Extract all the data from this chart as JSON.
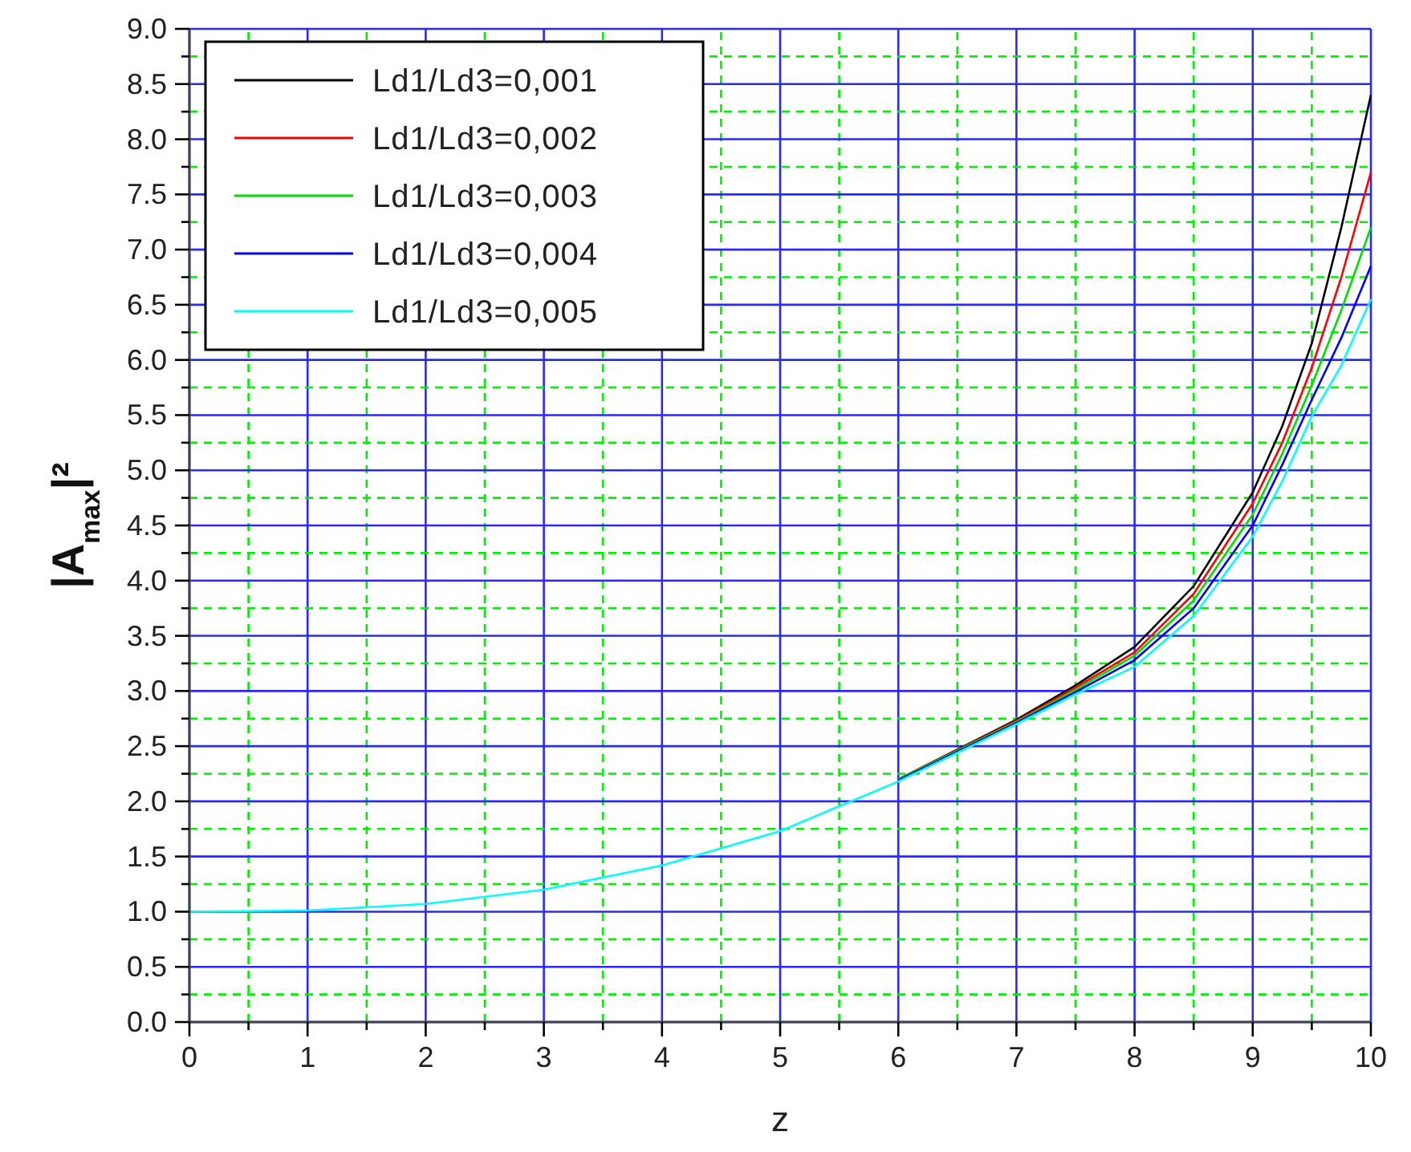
{
  "chart_data": {
    "type": "line",
    "xlabel": "z",
    "ylabel": "|A$_{max}$|²",
    "xlim": [
      0,
      10
    ],
    "ylim": [
      0,
      9
    ],
    "xticks": [
      0,
      {
        "value": 0.5,
        "label": null
      },
      1,
      {
        "value": 1.5,
        "label": null
      },
      2,
      {
        "value": 2.5,
        "label": null
      },
      3,
      {
        "value": 3.5,
        "label": null
      },
      4,
      {
        "value": 4.5,
        "label": null
      },
      5,
      {
        "value": 5.5,
        "label": null
      },
      6,
      {
        "value": 6.5,
        "label": null
      },
      7,
      {
        "value": 7.5,
        "label": null
      },
      8,
      {
        "value": 8.5,
        "label": null
      },
      9,
      {
        "value": 9.5,
        "label": null
      },
      10
    ],
    "yticks": [
      {
        "value": 0,
        "label": "0.0"
      },
      {
        "value": 0.25,
        "label": null
      },
      {
        "value": 0.5,
        "label": "0.5"
      },
      {
        "value": 0.75,
        "label": null
      },
      {
        "value": 1,
        "label": "1.0"
      },
      {
        "value": 1.25,
        "label": null
      },
      {
        "value": 1.5,
        "label": "1.5"
      },
      {
        "value": 1.75,
        "label": null
      },
      {
        "value": 2,
        "label": "2.0"
      },
      {
        "value": 2.25,
        "label": null
      },
      {
        "value": 2.5,
        "label": "2.5"
      },
      {
        "value": 2.75,
        "label": null
      },
      {
        "value": 3,
        "label": "3.0"
      },
      {
        "value": 3.25,
        "label": null
      },
      {
        "value": 3.5,
        "label": "3.5"
      },
      {
        "value": 3.75,
        "label": null
      },
      {
        "value": 4,
        "label": "4.0"
      },
      {
        "value": 4.25,
        "label": null
      },
      {
        "value": 4.5,
        "label": "4.5"
      },
      {
        "value": 4.75,
        "label": null
      },
      {
        "value": 5,
        "label": "5.0"
      },
      {
        "value": 5.25,
        "label": null
      },
      {
        "value": 5.5,
        "label": "5.5"
      },
      {
        "value": 5.75,
        "label": null
      },
      {
        "value": 6,
        "label": "6.0"
      },
      {
        "value": 6.25,
        "label": null
      },
      {
        "value": 6.5,
        "label": "6.5"
      },
      {
        "value": 6.75,
        "label": null
      },
      {
        "value": 7,
        "label": "7.0"
      },
      {
        "value": 7.25,
        "label": null
      },
      {
        "value": 7.5,
        "label": "7.5"
      },
      {
        "value": 7.75,
        "label": null
      },
      {
        "value": 8,
        "label": "8.0"
      },
      {
        "value": 8.25,
        "label": null
      },
      {
        "value": 8.5,
        "label": "8.5"
      },
      {
        "value": 8.75,
        "label": null
      },
      {
        "value": 9,
        "label": "9.0"
      }
    ],
    "grid": true,
    "legend": "top left",
    "marker": "none",
    "line_style": "solid",
    "x": [
      0,
      1,
      2,
      3,
      4,
      5,
      6,
      7,
      7.5,
      8,
      8.5,
      9,
      9.25,
      9.5,
      9.75,
      10
    ],
    "series": [
      {
        "name": "Ld1/Ld3=0,001",
        "color": "#000000",
        "values": [
          null,
          null,
          null,
          null,
          null,
          null,
          2.2,
          2.74,
          3.05,
          3.4,
          3.95,
          4.8,
          5.4,
          6.15,
          7.2,
          8.4
        ]
      },
      {
        "name": "Ld1/Ld3=0,002",
        "color": "#ff0000",
        "values": [
          null,
          null,
          null,
          null,
          null,
          null,
          2.2,
          2.73,
          3.03,
          3.35,
          3.88,
          4.7,
          5.25,
          5.93,
          6.75,
          7.7
        ]
      },
      {
        "name": "Ld1/Ld3=0,003",
        "color": "#00dd00",
        "values": [
          null,
          null,
          null,
          null,
          null,
          null,
          2.2,
          2.72,
          3.01,
          3.32,
          3.82,
          4.6,
          5.15,
          5.77,
          6.45,
          7.2
        ]
      },
      {
        "name": "Ld1/Ld3=0,004",
        "color": "#0000ff",
        "values": [
          null,
          null,
          null,
          null,
          null,
          null,
          2.19,
          2.71,
          2.99,
          3.28,
          3.75,
          4.5,
          5.05,
          5.64,
          6.2,
          6.85
        ]
      },
      {
        "name": "Ld1/Ld3=0,005",
        "color": "#00ffff",
        "values": [
          1,
          1.01,
          1.07,
          1.2,
          1.42,
          1.73,
          2.18,
          2.7,
          2.97,
          3.22,
          3.68,
          4.4,
          4.9,
          5.49,
          5.95,
          6.55
        ]
      }
    ]
  }
}
